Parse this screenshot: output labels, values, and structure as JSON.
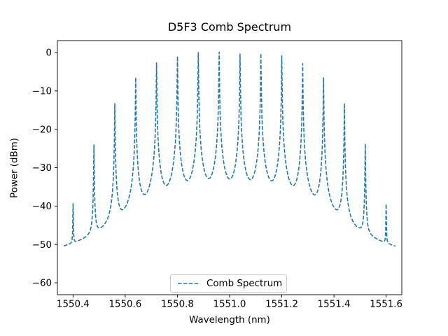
{
  "chart_data": {
    "type": "line",
    "title": "D5F3 Comb Spectrum",
    "xlabel": "Wavelength (nm)",
    "ylabel": "Power (dBm)",
    "xlim": [
      1550.34,
      1551.66
    ],
    "ylim": [
      -63.1,
      3.1
    ],
    "grid": false,
    "background": "#ffffff",
    "xticks": {
      "values": [
        1550.4,
        1550.6,
        1550.8,
        1551.0,
        1551.2,
        1551.4,
        1551.6
      ],
      "labels": [
        "1550.4",
        "1550.6",
        "1550.8",
        "1551.0",
        "1551.2",
        "1551.4",
        "1551.6"
      ]
    },
    "yticks": {
      "values": [
        0,
        -10,
        -20,
        -30,
        -40,
        -50,
        -60
      ],
      "labels": [
        "0",
        "−10",
        "−20",
        "−30",
        "−40",
        "−50",
        "−60"
      ]
    },
    "legend": {
      "position": "lower center",
      "entries": [
        "Comb Spectrum"
      ]
    },
    "series": [
      {
        "name": "Comb Spectrum",
        "color": "#1f77b4",
        "style": "dashed",
        "linewidth": 1.6,
        "dash": [
          5.5,
          2.4
        ]
      }
    ],
    "peaks": {
      "count": 16,
      "spacing_nm": 0.08,
      "wavelength_nm": [
        1550.4,
        1550.48,
        1550.56,
        1550.64,
        1550.72,
        1550.8,
        1550.88,
        1550.96,
        1551.04,
        1551.12,
        1551.2,
        1551.28,
        1551.36,
        1551.44,
        1551.52,
        1551.6
      ],
      "power_dbm": [
        -39.8,
        -24.1,
        -13.3,
        -6.5,
        -2.7,
        -1.0,
        0.0,
        0.1,
        -0.4,
        -0.2,
        -0.9,
        -2.9,
        -6.5,
        -13.2,
        -23.8,
        -39.9
      ]
    },
    "model": {
      "lineshape": "lorentzian",
      "gamma_nm": 0.0006,
      "noise_floor_dbm": -60,
      "sample_start_nm": 1550.364,
      "sample_end_nm": 1551.636,
      "sample_step_nm": 0.002
    }
  }
}
